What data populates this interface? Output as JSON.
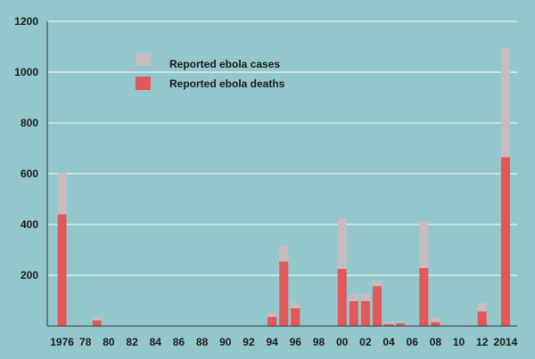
{
  "chart_data": {
    "type": "bar",
    "title": "",
    "xlabel": "",
    "ylabel": "",
    "ylim": [
      0,
      1200
    ],
    "yticks": [
      200,
      400,
      600,
      800,
      1000,
      1200
    ],
    "xtick_labels": [
      {
        "year": 1976,
        "label": "1976"
      },
      {
        "year": 1978,
        "label": "78"
      },
      {
        "year": 1980,
        "label": "80"
      },
      {
        "year": 1982,
        "label": "82"
      },
      {
        "year": 1984,
        "label": "84"
      },
      {
        "year": 1986,
        "label": "86"
      },
      {
        "year": 1988,
        "label": "88"
      },
      {
        "year": 1990,
        "label": "90"
      },
      {
        "year": 1992,
        "label": "92"
      },
      {
        "year": 1994,
        "label": "94"
      },
      {
        "year": 1996,
        "label": "96"
      },
      {
        "year": 1998,
        "label": "98"
      },
      {
        "year": 2000,
        "label": "00"
      },
      {
        "year": 2002,
        "label": "02"
      },
      {
        "year": 2004,
        "label": "04"
      },
      {
        "year": 2006,
        "label": "06"
      },
      {
        "year": 2008,
        "label": "08"
      },
      {
        "year": 2010,
        "label": "10"
      },
      {
        "year": 2012,
        "label": "12"
      },
      {
        "year": 2014,
        "label": "2014"
      }
    ],
    "grid": true,
    "legend_position": "top-left",
    "series": [
      {
        "name": "Reported ebola cases",
        "color": "#c8bcc0",
        "points": [
          {
            "x": 1976,
            "y": 602
          },
          {
            "x": 1977,
            "y": 1
          },
          {
            "x": 1979,
            "y": 34
          },
          {
            "x": 1994,
            "y": 52
          },
          {
            "x": 1995,
            "y": 315
          },
          {
            "x": 1996,
            "y": 91
          },
          {
            "x": 2000,
            "y": 425
          },
          {
            "x": 2001,
            "y": 125
          },
          {
            "x": 2002,
            "y": 130
          },
          {
            "x": 2003,
            "y": 178
          },
          {
            "x": 2004,
            "y": 17
          },
          {
            "x": 2005,
            "y": 12
          },
          {
            "x": 2007,
            "y": 413
          },
          {
            "x": 2008,
            "y": 32
          },
          {
            "x": 2011,
            "y": 1
          },
          {
            "x": 2012,
            "y": 92
          },
          {
            "x": 2014,
            "y": 1095
          }
        ]
      },
      {
        "name": "Reported ebola deaths",
        "color": "#e0585a",
        "points": [
          {
            "x": 1976,
            "y": 440
          },
          {
            "x": 1977,
            "y": 1
          },
          {
            "x": 1979,
            "y": 22
          },
          {
            "x": 1994,
            "y": 36
          },
          {
            "x": 1995,
            "y": 254
          },
          {
            "x": 1996,
            "y": 70
          },
          {
            "x": 2000,
            "y": 225
          },
          {
            "x": 2001,
            "y": 98
          },
          {
            "x": 2002,
            "y": 98
          },
          {
            "x": 2003,
            "y": 157
          },
          {
            "x": 2004,
            "y": 7
          },
          {
            "x": 2005,
            "y": 10
          },
          {
            "x": 2007,
            "y": 228
          },
          {
            "x": 2008,
            "y": 15
          },
          {
            "x": 2011,
            "y": 1
          },
          {
            "x": 2012,
            "y": 57
          },
          {
            "x": 2014,
            "y": 665
          }
        ]
      }
    ]
  },
  "colors": {
    "background": "#93c7cb",
    "gridline": "#d8ecee",
    "axis": "#333333",
    "cases": "#c8bcc0",
    "deaths": "#e0585a"
  }
}
